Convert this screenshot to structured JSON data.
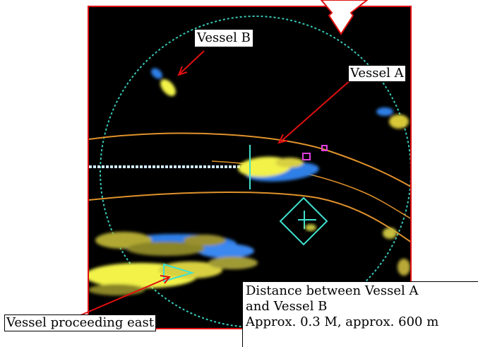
{
  "labels": {
    "vessel_b": "Vessel B",
    "vessel_a": "Vessel A",
    "vessel_east": "Vessel proceeding east",
    "distance_line1": "Distance between Vessel A",
    "distance_line2": "and Vessel B",
    "distance_line3": "Approx. 0.3 M, approx. 600 m"
  },
  "colors": {
    "frame": "#e01010",
    "radar_bg": "#000000",
    "echo_yellow": "#f2f24a",
    "echo_blue": "#2f7fe6",
    "range_ring": "#38c8b8",
    "track_line": "#e0922c",
    "marker_cyan": "#40e0d0",
    "marker_magenta": "#e040e0",
    "arrow": "#e01010"
  }
}
